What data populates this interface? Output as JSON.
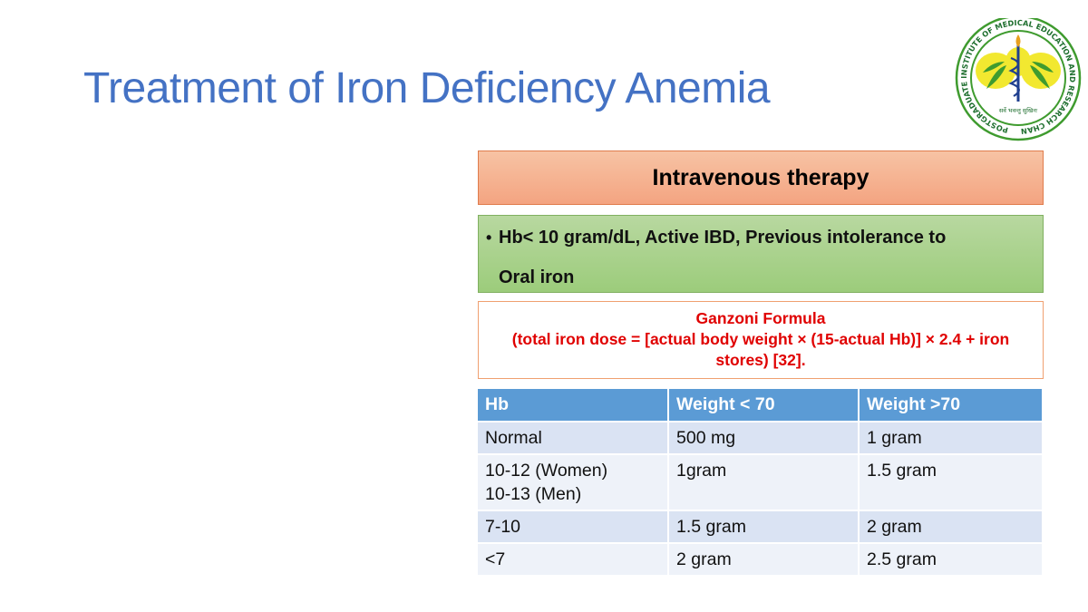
{
  "slide": {
    "title": "Treatment of Iron Deficiency Anemia"
  },
  "logo": {
    "name": "PGIMER Chandigarh emblem",
    "ring_text": "POSTGRADUATE INSTITUTE OF MEDICAL EDUCATION AND RESEARCH CHANDIGARH",
    "motto": "सर्वे भवन्तु सुखिनः",
    "colors": {
      "green": "#3f9b2f",
      "yellow": "#f2e830",
      "blue": "#1f3f8f"
    }
  },
  "iv_therapy": {
    "header": "Intravenous therapy",
    "indication_line1": "Hb< 10 gram/dL, Active IBD, Previous intolerance to",
    "indication_line2": "Oral iron"
  },
  "formula": {
    "title": "Ganzoni Formula",
    "line1": "(total iron dose = [actual body weight × (15-actual Hb)] × 2.4 + iron",
    "line2": "stores) [32]."
  },
  "dose_table": {
    "headers": [
      "Hb",
      "Weight < 70",
      "Weight >70"
    ],
    "rows": [
      {
        "hb": "Normal",
        "hb2": "",
        "w_lt70": "500 mg",
        "w_gt70": "1 gram"
      },
      {
        "hb": "10-12 (Women)",
        "hb2": "10-13 (Men)",
        "w_lt70": "1gram",
        "w_gt70": "1.5 gram"
      },
      {
        "hb": "7-10",
        "hb2": "",
        "w_lt70": "1.5 gram",
        "w_gt70": "2 gram"
      },
      {
        "hb": "<7",
        "hb2": "",
        "w_lt70": "2 gram",
        "w_gt70": "2.5 gram"
      }
    ]
  },
  "colors": {
    "title": "#4472c4",
    "table_header": "#5b9bd5",
    "formula_text": "#e00000"
  }
}
